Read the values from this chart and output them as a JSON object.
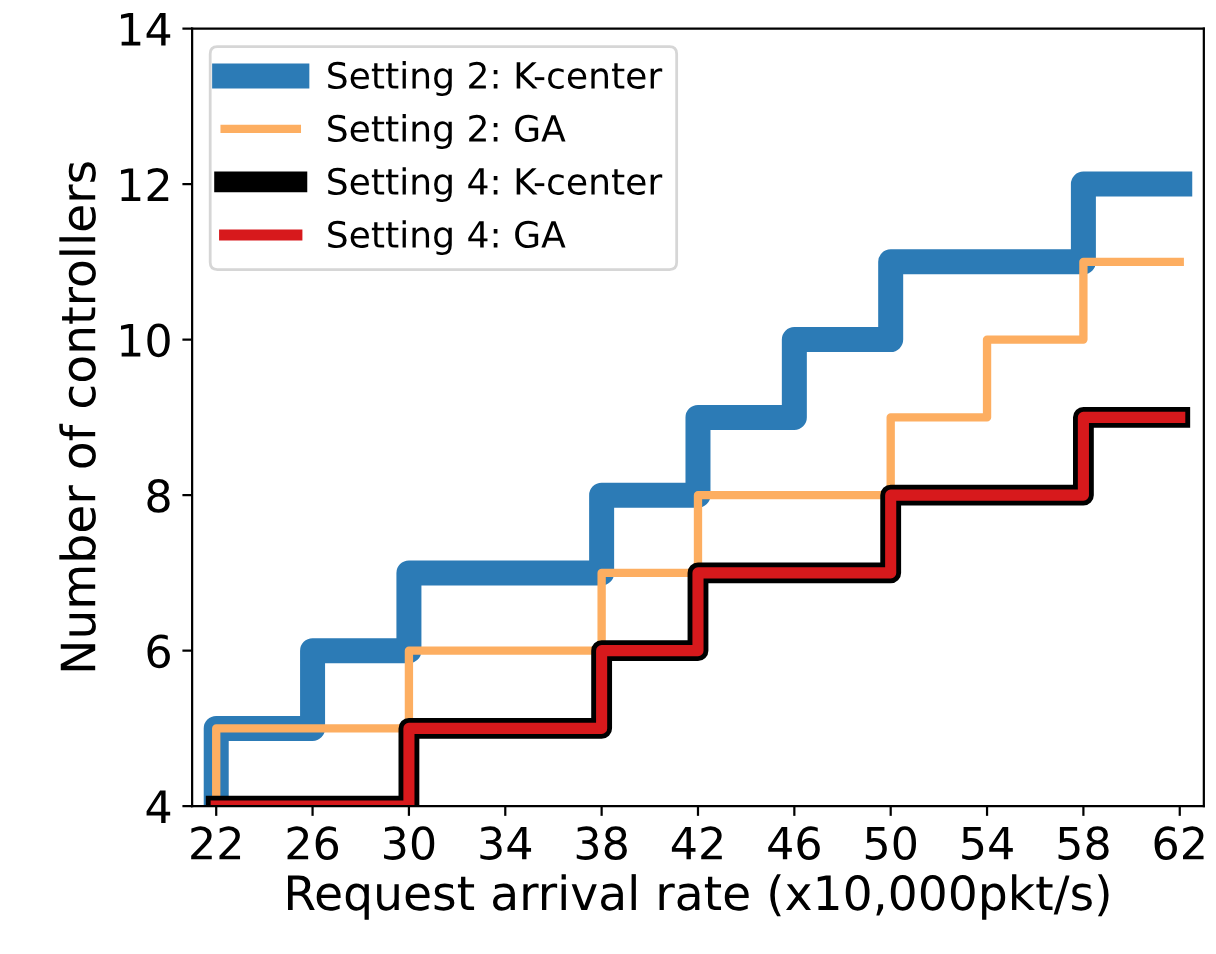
{
  "chart_data": {
    "type": "step",
    "xlabel": "Request arrival rate (x10,000pkt/s)",
    "ylabel": "Number of controllers",
    "x": [
      22,
      26,
      30,
      34,
      38,
      42,
      46,
      50,
      54,
      58,
      62
    ],
    "series": [
      {
        "name": "Setting 2: K-center",
        "color": "#2c7bb6",
        "values": [
          4,
          5,
          6,
          7,
          7,
          8,
          9,
          10,
          11,
          11,
          12
        ]
      },
      {
        "name": "Setting 2: GA",
        "color": "#fdae61",
        "values": [
          4,
          5,
          5,
          6,
          6,
          7,
          8,
          8,
          9,
          10,
          11
        ]
      },
      {
        "name": "Setting 4: K-center",
        "color": "#000000",
        "values": [
          4,
          4,
          4,
          5,
          5,
          6,
          7,
          7,
          8,
          8,
          9
        ]
      },
      {
        "name": "Setting 4: GA",
        "color": "#d7191c",
        "values": [
          4,
          4,
          4,
          5,
          5,
          6,
          7,
          7,
          8,
          8,
          9
        ]
      }
    ],
    "xlim": [
      21,
      63
    ],
    "xticks": [
      22,
      26,
      30,
      34,
      38,
      42,
      46,
      50,
      54,
      58,
      62
    ],
    "ylim": [
      4,
      14
    ],
    "yticks": [
      4,
      6,
      8,
      10,
      12,
      14
    ],
    "grid": false,
    "legend": "top left"
  }
}
